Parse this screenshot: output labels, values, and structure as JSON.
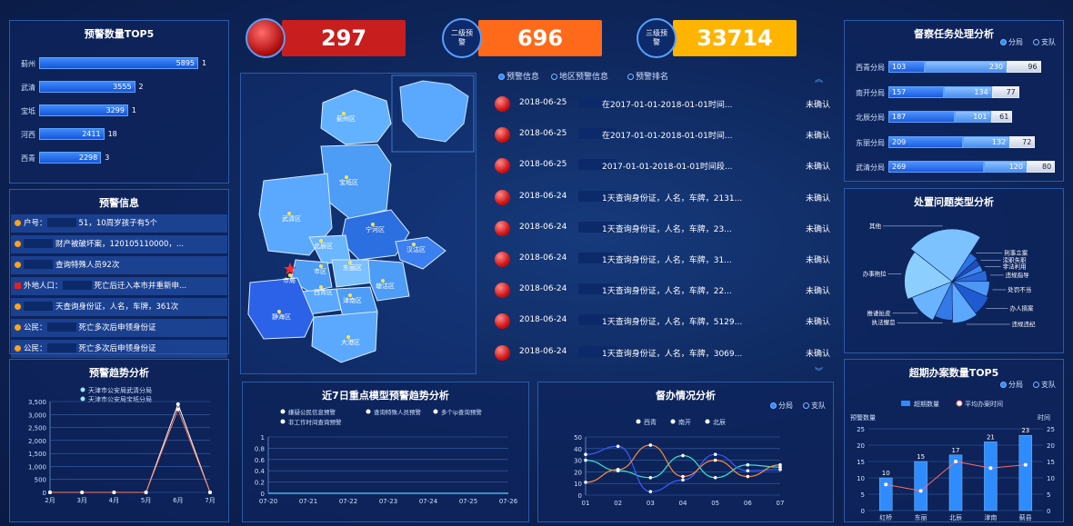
{
  "stats": [
    {
      "label": "",
      "value": "297",
      "color": "#c81e1e"
    },
    {
      "label": "二级预警",
      "value": "696",
      "color": "#ff6a1a"
    },
    {
      "label": "三级预警",
      "value": "33714",
      "color": "#ffb400"
    }
  ],
  "top5": {
    "title": "预警数量TOP5",
    "items": [
      {
        "name": "蓟州",
        "value": 5895,
        "rank": "1"
      },
      {
        "name": "武清",
        "value": 3555,
        "rank": "2"
      },
      {
        "name": "宝坻",
        "value": 3299,
        "rank": "1"
      },
      {
        "name": "河西",
        "value": 2411,
        "rank": "18"
      },
      {
        "name": "西青",
        "value": 2298,
        "rank": "3"
      }
    ]
  },
  "alert_info": {
    "title": "预警信息",
    "rows": [
      {
        "icon": "orange",
        "prefix": "户号：",
        "text": "51，10周岁孩子有5个"
      },
      {
        "icon": "orange",
        "prefix": "",
        "text": "财产被破坏案，120105110000，..."
      },
      {
        "icon": "orange",
        "prefix": "",
        "text": "查询特殊人员92次"
      },
      {
        "icon": "red",
        "prefix": "外地人口：",
        "text": "死亡后迁入本市并重新申..."
      },
      {
        "icon": "orange",
        "prefix": "",
        "text": "天查询身份证，人名，车牌，361次"
      },
      {
        "icon": "orange",
        "prefix": "公民：",
        "text": "死亡多次后申领身份证"
      },
      {
        "icon": "orange",
        "prefix": "公民：",
        "text": "死亡多次后申领身份证"
      }
    ]
  },
  "trend": {
    "title": "预警趋势分析",
    "legend": [
      "天津市公安局武清分局",
      "天津市公安局宝坻分局"
    ],
    "chart_data": {
      "type": "line",
      "categories": [
        "2月",
        "3月",
        "4月",
        "5月",
        "6月",
        "7月"
      ],
      "series": [
        {
          "name": "天津市公安局武清分局",
          "values": [
            0,
            0,
            0,
            0,
            3400,
            0
          ]
        },
        {
          "name": "天津市公安局宝坻分局",
          "values": [
            0,
            0,
            0,
            0,
            3200,
            0
          ]
        }
      ],
      "ylim": [
        0,
        3500
      ],
      "yticks": [
        "0",
        "500",
        "1,000",
        "1,500",
        "2,000",
        "2,500",
        "3,000",
        "3,500"
      ]
    }
  },
  "map": {
    "districts": [
      "蓟州区",
      "宝坻区",
      "武清区",
      "宁河区",
      "北辰区",
      "东丽区",
      "汉沽区",
      "市区",
      "西青区",
      "塘沽区",
      "津南区",
      "静海区",
      "大港区",
      "市局"
    ]
  },
  "alert_tabs": [
    "预警信息",
    "地区预警信息",
    "预警排名"
  ],
  "alert_list": [
    {
      "date": "2018-06-25",
      "text": "在2017-01-01-2018-01-01时间...",
      "status": "未确认"
    },
    {
      "date": "2018-06-25",
      "text": "在2017-01-01-2018-01-01时间...",
      "status": "未确认"
    },
    {
      "date": "2018-06-25",
      "text": "2017-01-01-2018-01-01时间段...",
      "status": "未确认"
    },
    {
      "date": "2018-06-24",
      "text": "1天查询身份证，人名，车牌，2131...",
      "status": "未确认"
    },
    {
      "date": "2018-06-24",
      "text": "1天查询身份证，人名，车牌，23...",
      "status": "未确认"
    },
    {
      "date": "2018-06-24",
      "text": "1天查询身份证，人名，车牌，31...",
      "status": "未确认"
    },
    {
      "date": "2018-06-24",
      "text": "1天查询身份证，人名，车牌，22...",
      "status": "未确认"
    },
    {
      "date": "2018-06-24",
      "text": "1天查询身份证，人名，车牌，5129...",
      "status": "未确认"
    },
    {
      "date": "2018-06-24",
      "text": "1天查询身份证，人名，车牌，3069...",
      "status": "未确认"
    }
  ],
  "model_trend": {
    "title": "近7日重点模型预警趋势分析",
    "legend": [
      "嫌疑公民信息预警",
      "查询特殊人员预警",
      "多个ip查询预警",
      "非工作时间查询预警"
    ],
    "chart_data": {
      "type": "line",
      "categories": [
        "07-20",
        "07-21",
        "07-22",
        "07-23",
        "07-24",
        "07-25",
        "07-26"
      ],
      "series": [
        {
          "name": "嫌疑公民信息预警",
          "values": [
            0,
            0,
            0,
            0,
            0,
            0,
            0
          ]
        }
      ],
      "ylim": [
        0,
        1
      ],
      "yticks": [
        "0",
        "0.2",
        "0.4",
        "0.6",
        "0.8",
        "1"
      ]
    }
  },
  "supervise": {
    "title": "督办情况分析",
    "radios": [
      "分局",
      "支队"
    ],
    "legend": [
      "西青",
      "南开",
      "北辰"
    ],
    "chart_data": {
      "type": "line",
      "categories": [
        "01",
        "02",
        "03",
        "04",
        "05",
        "06",
        "07"
      ],
      "series": [
        {
          "name": "西青",
          "values": [
            30,
            21,
            15,
            34,
            15,
            26,
            24
          ]
        },
        {
          "name": "南开",
          "values": [
            35,
            42,
            3,
            13,
            35,
            21,
            22
          ]
        },
        {
          "name": "北辰",
          "values": [
            11,
            22,
            43,
            16,
            30,
            16,
            26
          ]
        }
      ],
      "ylim": [
        0,
        50
      ],
      "yticks": [
        "0",
        "10",
        "20",
        "30",
        "40",
        "50"
      ]
    }
  },
  "task": {
    "title": "督察任务处理分析",
    "radios": [
      "分局",
      "支队"
    ],
    "rows": [
      {
        "name": "西青分局",
        "a": 103,
        "b": 230,
        "c": 96
      },
      {
        "name": "南开分局",
        "a": 157,
        "b": 134,
        "c": 77
      },
      {
        "name": "北辰分局",
        "a": 187,
        "b": 101,
        "c": 61
      },
      {
        "name": "东丽分局",
        "a": 209,
        "b": 132,
        "c": 72
      },
      {
        "name": "武清分局",
        "a": 269,
        "b": 120,
        "c": 80
      }
    ]
  },
  "issue_type": {
    "title": "处置问题类型分析",
    "chart_data": {
      "type": "pie",
      "labels": [
        "其他",
        "刑事立案",
        "渎职失职",
        "非法利用",
        "违规指导",
        "处罚不当",
        "办人搞案",
        "违规违纪",
        "执法懈怠",
        "推诿扯皮",
        "办事拖拉"
      ],
      "values": [
        28,
        5,
        4,
        4,
        6,
        8,
        10,
        12,
        9,
        14,
        20
      ]
    }
  },
  "overdue": {
    "title": "超期办案数量TOP5",
    "radios": [
      "分局",
      "支队"
    ],
    "legend": [
      "超期数量",
      "平均办案时间"
    ],
    "yleft": "预警数量",
    "yright": "时间",
    "chart_data": {
      "type": "bar",
      "categories": [
        "红桥",
        "东丽",
        "北辰",
        "津南",
        "蓟县"
      ],
      "series": [
        {
          "name": "超期数量",
          "values": [
            10,
            15,
            17,
            21,
            23
          ]
        },
        {
          "name": "平均办案时间",
          "values": [
            8,
            6,
            15,
            13,
            14
          ]
        }
      ],
      "ylim": [
        0,
        25
      ],
      "yticks": [
        "0",
        "5",
        "10",
        "15",
        "20",
        "25"
      ]
    }
  }
}
